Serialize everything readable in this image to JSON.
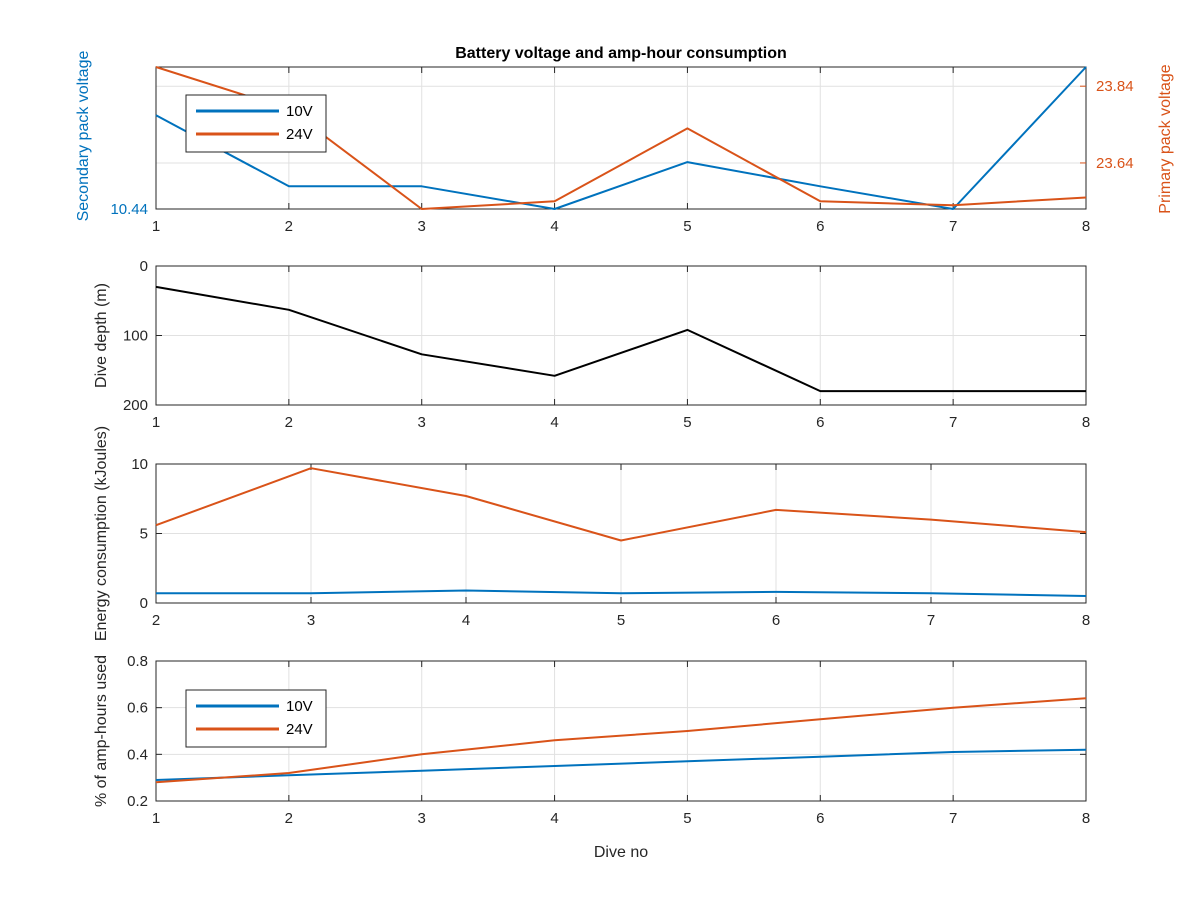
{
  "chart_data": [
    {
      "type": "line",
      "title": "Battery voltage and amp-hour consumption",
      "x": [
        1,
        2,
        3,
        4,
        5,
        6,
        7,
        8
      ],
      "xlim": [
        1,
        8
      ],
      "xticks": [
        "1",
        "2",
        "3",
        "4",
        "5",
        "6",
        "7",
        "8"
      ],
      "ylabel_left": "Secondary pack voltage",
      "ylabel_right": "Primary pack voltage",
      "ylim_left": [
        10.44,
        10.49
      ],
      "yticks_left": [
        "10.44"
      ],
      "ylim_right": [
        23.52,
        23.89
      ],
      "yticks_right": [
        "23.64",
        "23.84"
      ],
      "grid": true,
      "legend": {
        "position": "top-left",
        "entries": [
          "10V",
          "24V"
        ]
      },
      "series": [
        {
          "name": "10V",
          "axis": "left",
          "color": "#0072BD",
          "x": [
            1,
            2,
            3,
            4,
            5,
            6,
            7,
            8
          ],
          "values": [
            10.473,
            10.448,
            10.448,
            10.44,
            10.4565,
            10.448,
            10.44,
            10.49
          ]
        },
        {
          "name": "24V",
          "axis": "right",
          "color": "#D95319",
          "x": [
            1,
            2,
            3,
            4,
            5,
            6,
            7,
            8
          ],
          "values": [
            23.89,
            23.78,
            23.52,
            23.54,
            23.73,
            23.54,
            23.53,
            23.55
          ]
        }
      ]
    },
    {
      "type": "line",
      "x": [
        1,
        2,
        3,
        4,
        5,
        6,
        7,
        8
      ],
      "xlim": [
        1,
        8
      ],
      "xticks": [
        "1",
        "2",
        "3",
        "4",
        "5",
        "6",
        "7",
        "8"
      ],
      "ylabel": "Dive depth (m)",
      "ylim": [
        0,
        200
      ],
      "yreversed": true,
      "yticks": [
        "0",
        "100",
        "200"
      ],
      "grid": true,
      "series": [
        {
          "color": "#000000",
          "x": [
            1,
            2,
            3,
            4,
            5,
            6,
            7,
            8
          ],
          "values": [
            30,
            63,
            127,
            158,
            92,
            180,
            180,
            180
          ]
        }
      ]
    },
    {
      "type": "line",
      "x": [
        2,
        3,
        4,
        5,
        6,
        7,
        8
      ],
      "xlim": [
        2,
        8
      ],
      "xticks": [
        "2",
        "3",
        "4",
        "5",
        "6",
        "7",
        "8"
      ],
      "ylabel": "Energy consumption (kJoules)",
      "ylim": [
        0,
        10
      ],
      "yticks": [
        "0",
        "5",
        "10"
      ],
      "grid": true,
      "series": [
        {
          "name": "10V",
          "color": "#0072BD",
          "x": [
            2,
            3,
            4,
            5,
            6,
            7,
            8
          ],
          "values": [
            0.7,
            0.7,
            0.9,
            0.7,
            0.8,
            0.7,
            0.5
          ]
        },
        {
          "name": "24V",
          "color": "#D95319",
          "x": [
            2,
            3,
            4,
            5,
            6,
            7,
            8
          ],
          "values": [
            5.6,
            9.7,
            7.7,
            4.5,
            6.7,
            6.0,
            5.1
          ]
        }
      ]
    },
    {
      "type": "line",
      "x": [
        1,
        2,
        3,
        4,
        5,
        6,
        7,
        8
      ],
      "xlim": [
        1,
        8
      ],
      "xticks": [
        "1",
        "2",
        "3",
        "4",
        "5",
        "6",
        "7",
        "8"
      ],
      "xlabel": "Dive no",
      "ylabel": "% of amp-hours used",
      "ylim": [
        0.2,
        0.8
      ],
      "yticks": [
        "0.2",
        "0.4",
        "0.6",
        "0.8"
      ],
      "grid": true,
      "legend": {
        "position": "bottom-left",
        "entries": [
          "10V",
          "24V"
        ]
      },
      "series": [
        {
          "name": "10V",
          "color": "#0072BD",
          "x": [
            1,
            2,
            3,
            4,
            5,
            6,
            7,
            8
          ],
          "values": [
            0.29,
            0.31,
            0.33,
            0.35,
            0.37,
            0.39,
            0.41,
            0.42
          ]
        },
        {
          "name": "24V",
          "color": "#D95319",
          "x": [
            1,
            2,
            3,
            4,
            5,
            6,
            7,
            8
          ],
          "values": [
            0.28,
            0.32,
            0.4,
            0.46,
            0.5,
            0.55,
            0.6,
            0.64
          ]
        }
      ]
    }
  ]
}
